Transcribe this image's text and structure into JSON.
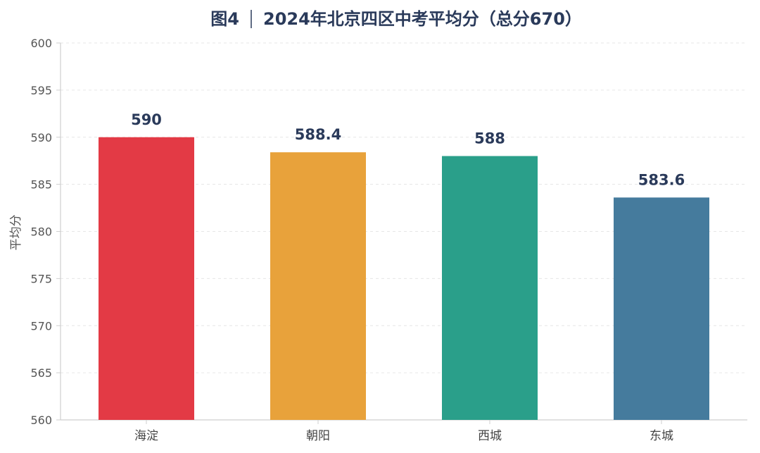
{
  "chart_data": {
    "type": "bar",
    "title_prefix": "图4",
    "title": "2024年北京四区中考平均分（总分670）",
    "xlabel": "",
    "ylabel": "平均分",
    "categories": [
      "海淀",
      "朝阳",
      "西城",
      "东城"
    ],
    "values": [
      590,
      588.4,
      588,
      583.6
    ],
    "value_labels": [
      "590",
      "588.4",
      "588",
      "583.6"
    ],
    "colors": [
      "#e33a45",
      "#e8a23b",
      "#2a9f8a",
      "#457b9d"
    ],
    "ylim": [
      560,
      600
    ],
    "yticks": [
      560,
      565,
      570,
      575,
      580,
      585,
      590,
      595,
      600
    ],
    "grid": true
  }
}
